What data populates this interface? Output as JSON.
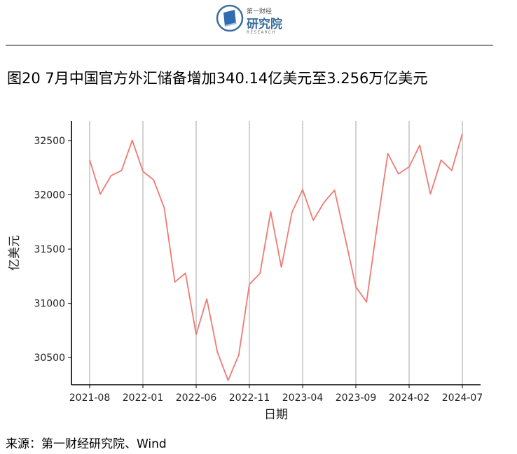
{
  "logo": {
    "icon": "blue-book-logo-icon",
    "name": "第一财经",
    "main": "研究院",
    "sub": "RESEARCH"
  },
  "title": "图20 7月中国官方外汇储备增加340.14亿美元至3.256万亿美元",
  "source": "来源：第一财经研究院、Wind",
  "chart_data": {
    "type": "line",
    "xlabel": "日期",
    "ylabel": "亿美元",
    "ylim": [
      30250,
      32680
    ],
    "yticks": [
      30500,
      31000,
      31500,
      32000,
      32500
    ],
    "xticks": [
      "2021-08",
      "2022-01",
      "2022-06",
      "2022-11",
      "2023-04",
      "2023-09",
      "2024-02",
      "2024-07"
    ],
    "grid": "vertical",
    "line_color": "#f07a73",
    "series": [
      {
        "name": "",
        "x": [
          "2021-08",
          "2021-09",
          "2021-10",
          "2021-11",
          "2021-12",
          "2022-01",
          "2022-02",
          "2022-03",
          "2022-04",
          "2022-05",
          "2022-06",
          "2022-07",
          "2022-08",
          "2022-09",
          "2022-10",
          "2022-11",
          "2022-12",
          "2023-01",
          "2023-02",
          "2023-03",
          "2023-04",
          "2023-05",
          "2023-06",
          "2023-07",
          "2023-08",
          "2023-09",
          "2023-10",
          "2023-11",
          "2023-12",
          "2024-01",
          "2024-02",
          "2024-03",
          "2024-04",
          "2024-05",
          "2024-06",
          "2024-07"
        ],
        "values": [
          32321,
          32006,
          32176,
          32224,
          32502,
          32216,
          32138,
          31880,
          31197,
          31278,
          30713,
          31041,
          30549,
          30290,
          30524,
          31175,
          31277,
          31845,
          31333,
          31839,
          32048,
          31765,
          31929,
          32043,
          31600,
          31151,
          31012,
          31718,
          32380,
          32193,
          32258,
          32457,
          32008,
          32320,
          32224,
          32564
        ]
      }
    ]
  }
}
